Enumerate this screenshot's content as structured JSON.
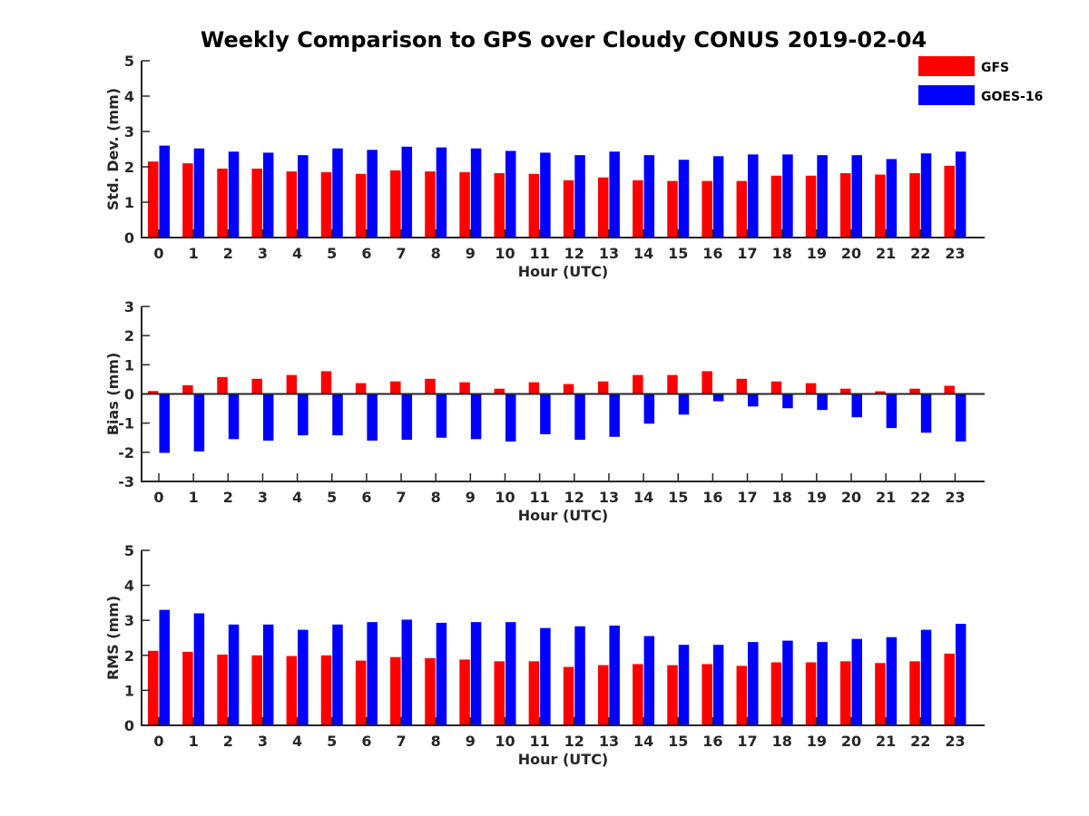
{
  "title": "Weekly Comparison to GPS over Cloudy CONUS 2019-02-04",
  "legend": {
    "placement": "top-right"
  },
  "chart_data": [
    {
      "type": "bar",
      "ylabel": "Std. Dev. (mm)",
      "xlabel": "Hour (UTC)",
      "ylim": [
        0,
        5
      ],
      "yticks": [
        0,
        1,
        2,
        3,
        4,
        5
      ],
      "categories": [
        "0",
        "1",
        "2",
        "3",
        "4",
        "5",
        "6",
        "7",
        "8",
        "9",
        "10",
        "11",
        "12",
        "13",
        "14",
        "15",
        "16",
        "17",
        "18",
        "19",
        "20",
        "21",
        "22",
        "23"
      ],
      "series": [
        {
          "name": "GFS",
          "color": "#ff0000",
          "values": [
            2.15,
            2.1,
            1.95,
            1.95,
            1.87,
            1.85,
            1.8,
            1.9,
            1.87,
            1.85,
            1.82,
            1.8,
            1.62,
            1.7,
            1.62,
            1.6,
            1.6,
            1.6,
            1.75,
            1.75,
            1.82,
            1.78,
            1.82,
            2.03
          ]
        },
        {
          "name": "GOES-16",
          "color": "#0000ff",
          "values": [
            2.6,
            2.52,
            2.43,
            2.4,
            2.33,
            2.52,
            2.48,
            2.57,
            2.55,
            2.52,
            2.45,
            2.4,
            2.33,
            2.43,
            2.33,
            2.2,
            2.3,
            2.35,
            2.35,
            2.33,
            2.33,
            2.22,
            2.38,
            2.43
          ]
        }
      ]
    },
    {
      "type": "bar",
      "ylabel": "Bias (mm)",
      "xlabel": "Hour (UTC)",
      "ylim": [
        -3,
        3
      ],
      "yticks": [
        -3,
        -2,
        -1,
        0,
        1,
        2,
        3
      ],
      "categories": [
        "0",
        "1",
        "2",
        "3",
        "4",
        "5",
        "6",
        "7",
        "8",
        "9",
        "10",
        "11",
        "12",
        "13",
        "14",
        "15",
        "16",
        "17",
        "18",
        "19",
        "20",
        "21",
        "22",
        "23"
      ],
      "series": [
        {
          "name": "GFS",
          "color": "#ff0000",
          "values": [
            0.1,
            0.3,
            0.58,
            0.52,
            0.65,
            0.78,
            0.37,
            0.43,
            0.52,
            0.4,
            0.18,
            0.4,
            0.34,
            0.43,
            0.65,
            0.65,
            0.78,
            0.52,
            0.43,
            0.37,
            0.18,
            0.09,
            0.18,
            0.28
          ]
        },
        {
          "name": "GOES-16",
          "color": "#0000ff",
          "values": [
            -2.02,
            -1.97,
            -1.55,
            -1.6,
            -1.42,
            -1.42,
            -1.6,
            -1.57,
            -1.5,
            -1.55,
            -1.63,
            -1.38,
            -1.57,
            -1.47,
            -1.02,
            -0.71,
            -0.25,
            -0.43,
            -0.49,
            -0.55,
            -0.8,
            -1.17,
            -1.33,
            -1.63
          ]
        }
      ]
    },
    {
      "type": "bar",
      "ylabel": "RMS (mm)",
      "xlabel": "Hour (UTC)",
      "ylim": [
        0,
        5
      ],
      "yticks": [
        0,
        1,
        2,
        3,
        4,
        5
      ],
      "categories": [
        "0",
        "1",
        "2",
        "3",
        "4",
        "5",
        "6",
        "7",
        "8",
        "9",
        "10",
        "11",
        "12",
        "13",
        "14",
        "15",
        "16",
        "17",
        "18",
        "19",
        "20",
        "21",
        "22",
        "23"
      ],
      "series": [
        {
          "name": "GFS",
          "color": "#ff0000",
          "values": [
            2.13,
            2.1,
            2.02,
            2.0,
            1.98,
            2.0,
            1.85,
            1.95,
            1.92,
            1.88,
            1.83,
            1.83,
            1.67,
            1.72,
            1.75,
            1.72,
            1.75,
            1.7,
            1.8,
            1.8,
            1.83,
            1.78,
            1.83,
            2.05
          ]
        },
        {
          "name": "GOES-16",
          "color": "#0000ff",
          "values": [
            3.3,
            3.2,
            2.88,
            2.88,
            2.73,
            2.88,
            2.95,
            3.02,
            2.93,
            2.95,
            2.95,
            2.78,
            2.83,
            2.85,
            2.55,
            2.3,
            2.3,
            2.38,
            2.42,
            2.38,
            2.47,
            2.52,
            2.73,
            2.9
          ]
        }
      ]
    }
  ]
}
